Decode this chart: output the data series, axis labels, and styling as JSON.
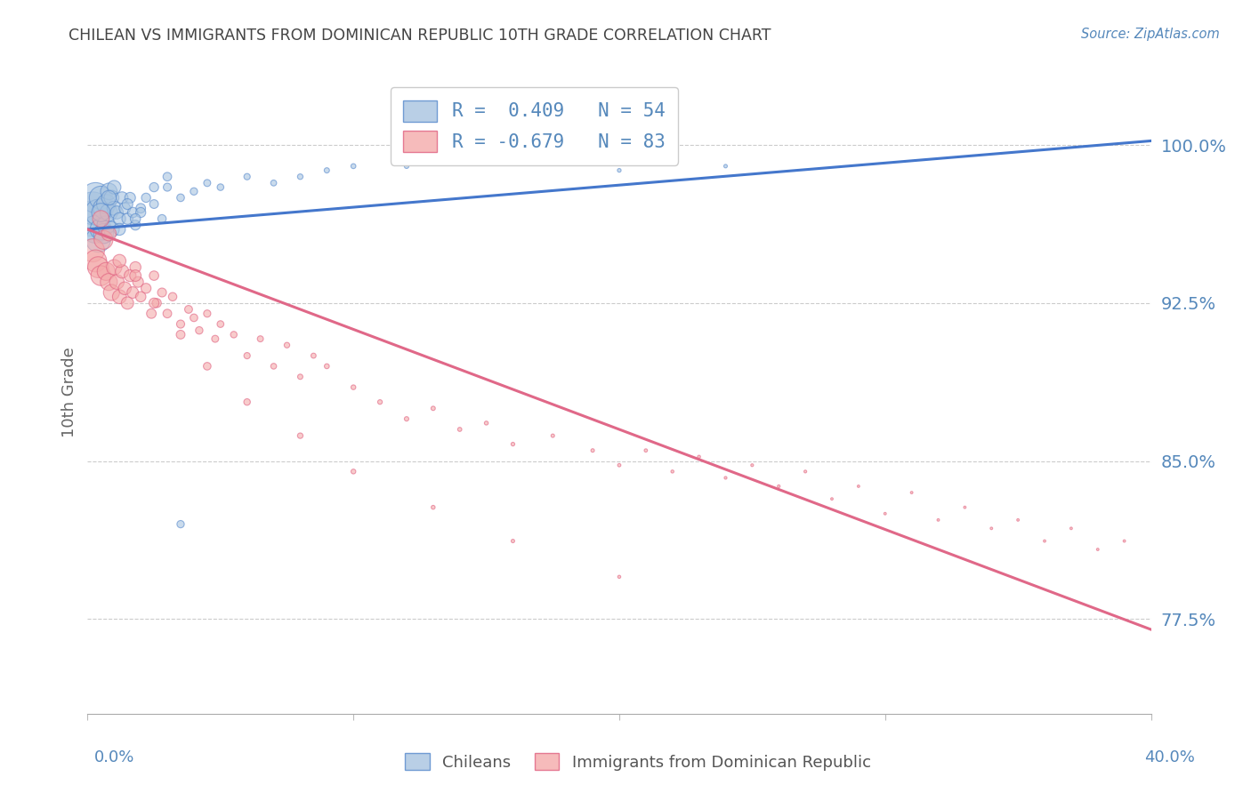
{
  "title": "CHILEAN VS IMMIGRANTS FROM DOMINICAN REPUBLIC 10TH GRADE CORRELATION CHART",
  "source": "Source: ZipAtlas.com",
  "ylabel": "10th Grade",
  "ytick_labels": [
    "100.0%",
    "92.5%",
    "85.0%",
    "77.5%"
  ],
  "ytick_values": [
    1.0,
    0.925,
    0.85,
    0.775
  ],
  "xmin": 0.0,
  "xmax": 0.4,
  "ymin": 0.73,
  "ymax": 1.035,
  "legend_blue_r": "R =  0.409",
  "legend_blue_n": "N = 54",
  "legend_pink_r": "R = -0.679",
  "legend_pink_n": "N = 83",
  "blue_color": "#A8C4E0",
  "pink_color": "#F4AAAA",
  "blue_edge_color": "#5588CC",
  "pink_edge_color": "#E06080",
  "blue_line_color": "#4477CC",
  "pink_line_color": "#E06888",
  "label_color": "#5588BB",
  "title_color": "#444444",
  "grid_color": "#CCCCCC",
  "background_color": "#FFFFFF",
  "blue_trend_x0": 0.0,
  "blue_trend_y0": 0.96,
  "blue_trend_x1": 0.4,
  "blue_trend_y1": 1.002,
  "pink_trend_x0": 0.0,
  "pink_trend_y0": 0.96,
  "pink_trend_x1": 0.4,
  "pink_trend_y1": 0.77,
  "chileans_x": [
    0.001,
    0.002,
    0.003,
    0.003,
    0.004,
    0.004,
    0.005,
    0.005,
    0.006,
    0.006,
    0.007,
    0.007,
    0.008,
    0.008,
    0.009,
    0.009,
    0.01,
    0.01,
    0.011,
    0.012,
    0.013,
    0.014,
    0.015,
    0.016,
    0.017,
    0.018,
    0.02,
    0.022,
    0.025,
    0.028,
    0.03,
    0.035,
    0.04,
    0.045,
    0.05,
    0.06,
    0.07,
    0.08,
    0.09,
    0.1,
    0.12,
    0.14,
    0.16,
    0.2,
    0.24,
    0.015,
    0.02,
    0.025,
    0.03,
    0.018,
    0.012,
    0.008,
    0.005,
    0.035
  ],
  "chileans_y": [
    0.965,
    0.97,
    0.975,
    0.96,
    0.968,
    0.955,
    0.975,
    0.96,
    0.97,
    0.958,
    0.972,
    0.962,
    0.968,
    0.978,
    0.96,
    0.975,
    0.97,
    0.98,
    0.968,
    0.965,
    0.975,
    0.97,
    0.965,
    0.975,
    0.968,
    0.962,
    0.97,
    0.975,
    0.972,
    0.965,
    0.98,
    0.975,
    0.978,
    0.982,
    0.98,
    0.985,
    0.982,
    0.985,
    0.988,
    0.99,
    0.99,
    0.992,
    0.995,
    0.988,
    0.99,
    0.972,
    0.968,
    0.98,
    0.985,
    0.965,
    0.96,
    0.975,
    0.968,
    0.82
  ],
  "chileans_sizes": [
    800,
    700,
    600,
    500,
    450,
    400,
    350,
    300,
    280,
    260,
    240,
    220,
    200,
    180,
    160,
    145,
    130,
    120,
    110,
    100,
    92,
    85,
    80,
    75,
    70,
    65,
    60,
    55,
    50,
    46,
    42,
    38,
    35,
    32,
    29,
    26,
    23,
    20,
    18,
    16,
    14,
    12,
    10,
    9,
    8,
    75,
    65,
    55,
    48,
    68,
    92,
    140,
    220,
    35
  ],
  "dominican_x": [
    0.002,
    0.003,
    0.004,
    0.005,
    0.006,
    0.007,
    0.008,
    0.009,
    0.01,
    0.011,
    0.012,
    0.013,
    0.014,
    0.015,
    0.016,
    0.017,
    0.018,
    0.019,
    0.02,
    0.022,
    0.024,
    0.025,
    0.026,
    0.028,
    0.03,
    0.032,
    0.035,
    0.038,
    0.04,
    0.042,
    0.045,
    0.048,
    0.05,
    0.055,
    0.06,
    0.065,
    0.07,
    0.075,
    0.08,
    0.085,
    0.09,
    0.1,
    0.11,
    0.12,
    0.13,
    0.14,
    0.15,
    0.16,
    0.175,
    0.19,
    0.2,
    0.21,
    0.22,
    0.23,
    0.24,
    0.25,
    0.26,
    0.27,
    0.28,
    0.29,
    0.3,
    0.31,
    0.32,
    0.33,
    0.34,
    0.35,
    0.36,
    0.37,
    0.38,
    0.39,
    0.005,
    0.008,
    0.012,
    0.018,
    0.025,
    0.035,
    0.045,
    0.06,
    0.08,
    0.1,
    0.13,
    0.16,
    0.2
  ],
  "dominican_y": [
    0.95,
    0.945,
    0.942,
    0.938,
    0.955,
    0.94,
    0.935,
    0.93,
    0.942,
    0.935,
    0.928,
    0.94,
    0.932,
    0.925,
    0.938,
    0.93,
    0.942,
    0.935,
    0.928,
    0.932,
    0.92,
    0.938,
    0.925,
    0.93,
    0.92,
    0.928,
    0.915,
    0.922,
    0.918,
    0.912,
    0.92,
    0.908,
    0.915,
    0.91,
    0.9,
    0.908,
    0.895,
    0.905,
    0.89,
    0.9,
    0.895,
    0.885,
    0.878,
    0.87,
    0.875,
    0.865,
    0.868,
    0.858,
    0.862,
    0.855,
    0.848,
    0.855,
    0.845,
    0.852,
    0.842,
    0.848,
    0.838,
    0.845,
    0.832,
    0.838,
    0.825,
    0.835,
    0.822,
    0.828,
    0.818,
    0.822,
    0.812,
    0.818,
    0.808,
    0.812,
    0.965,
    0.958,
    0.945,
    0.938,
    0.925,
    0.91,
    0.895,
    0.878,
    0.862,
    0.845,
    0.828,
    0.812,
    0.795
  ],
  "dominican_sizes": [
    350,
    320,
    290,
    260,
    230,
    210,
    190,
    170,
    155,
    140,
    128,
    118,
    108,
    100,
    92,
    86,
    80,
    75,
    70,
    65,
    61,
    58,
    55,
    52,
    49,
    46,
    43,
    40,
    38,
    36,
    34,
    32,
    30,
    28,
    26,
    24,
    22,
    20,
    18,
    17,
    16,
    15,
    14,
    13,
    12,
    11,
    10,
    9,
    8,
    8,
    7,
    7,
    6,
    6,
    5,
    5,
    5,
    5,
    4,
    4,
    4,
    4,
    4,
    4,
    4,
    4,
    4,
    4,
    4,
    4,
    180,
    140,
    110,
    85,
    65,
    50,
    38,
    28,
    20,
    15,
    10,
    8,
    6
  ]
}
